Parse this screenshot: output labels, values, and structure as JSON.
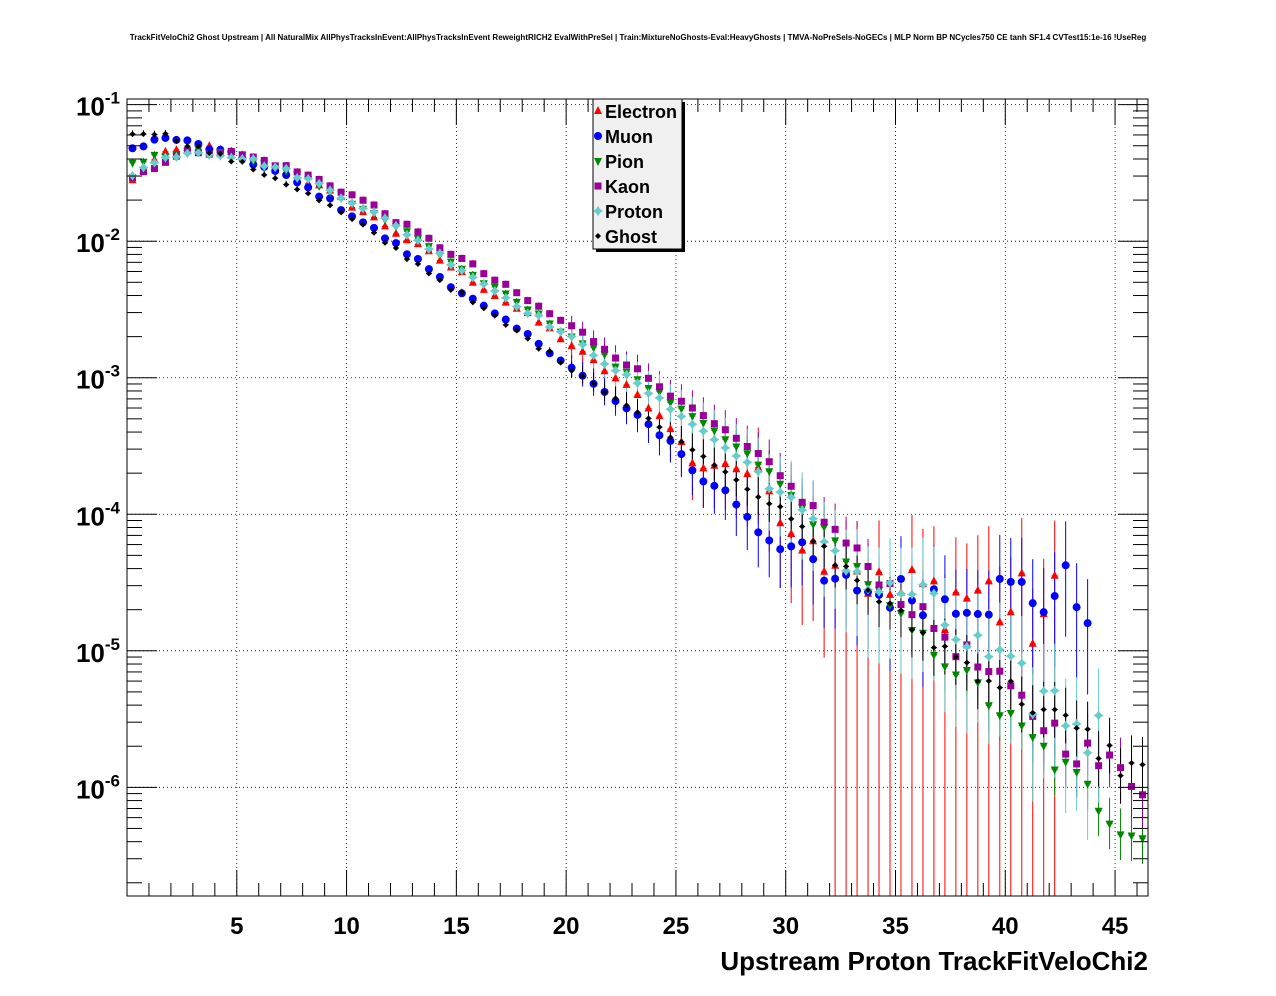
{
  "chart_data": {
    "type": "scatter",
    "title": "TrackFitVeloChi2 Ghost Upstream | All NaturalMix AllPhysTracksInEvent:AllPhysTracksInEvent ReweightRICH2 EvalWithPreSel | Train:MixtureNoGhosts-Eval:HeavyGhosts | TMVA-NoPreSels-NoGECs | MLP Norm BP NCycles750 CE tanh SF1.4 CVTest15:1e-16 !UseReg",
    "xlabel": "Upstream Proton TrackFitVeloChi2",
    "ylabel": "",
    "xlim": [
      0,
      46.5
    ],
    "ylim": [
      1.6e-07,
      0.11
    ],
    "yscale": "log",
    "grid": true,
    "legend_position": "top-center",
    "x_ticks": [
      "5",
      "10",
      "15",
      "20",
      "25",
      "30",
      "35",
      "40",
      "45"
    ],
    "y_ticks": [
      {
        "base": "10",
        "exp": "-1"
      },
      {
        "base": "10",
        "exp": "-2"
      },
      {
        "base": "10",
        "exp": "-3"
      },
      {
        "base": "10",
        "exp": "-4"
      },
      {
        "base": "10",
        "exp": "-5"
      },
      {
        "base": "10",
        "exp": "-6"
      }
    ],
    "series": [
      {
        "name": "Electron",
        "color": "#ff0000",
        "marker": "triangle-up",
        "anchors": [
          [
            0.2,
            0.027
          ],
          [
            0.7,
            0.033
          ],
          [
            1.5,
            0.042
          ],
          [
            2.5,
            0.047
          ],
          [
            3.5,
            0.049
          ],
          [
            5,
            0.043
          ],
          [
            7,
            0.033
          ],
          [
            9,
            0.024
          ],
          [
            11,
            0.0155
          ],
          [
            13,
            0.0097
          ],
          [
            15,
            0.0061
          ],
          [
            17,
            0.0038
          ],
          [
            19,
            0.0024
          ],
          [
            21,
            0.0014
          ],
          [
            23,
            0.0008
          ],
          [
            25,
            0.0004
          ],
          [
            26,
            0.0002
          ],
          [
            27,
            0.00025
          ],
          [
            28,
            0.00021
          ],
          [
            29,
            0.00018
          ],
          [
            30,
            9e-05
          ],
          [
            31,
            6e-05
          ],
          [
            32,
            5e-05
          ],
          [
            33,
            4.5e-05
          ],
          [
            34,
            3e-05
          ],
          [
            35,
            2.5e-05
          ],
          [
            36,
            2.8e-05
          ],
          [
            37,
            2.5e-05
          ],
          [
            38,
            2.5e-05
          ],
          [
            39,
            2.8e-05
          ],
          [
            40,
            2e-05
          ],
          [
            41,
            1.8e-05
          ],
          [
            42,
            1.8e-05
          ]
        ],
        "scatter": 0.42,
        "err_rel": 0.65,
        "x_end": 42.6
      },
      {
        "name": "Muon",
        "color": "#0000ff",
        "marker": "circle",
        "anchors": [
          [
            0.2,
            0.047
          ],
          [
            1,
            0.054
          ],
          [
            2,
            0.057
          ],
          [
            3,
            0.052
          ],
          [
            5,
            0.042
          ],
          [
            7,
            0.031
          ],
          [
            9,
            0.021
          ],
          [
            11,
            0.013
          ],
          [
            13,
            0.0077
          ],
          [
            15,
            0.0045
          ],
          [
            17,
            0.0027
          ],
          [
            19,
            0.0017
          ],
          [
            21,
            0.00095
          ],
          [
            23,
            0.00055
          ],
          [
            25,
            0.00032
          ],
          [
            26,
            0.00018
          ],
          [
            27,
            0.00016
          ],
          [
            28,
            0.00011
          ],
          [
            29,
            7e-05
          ],
          [
            30,
            6e-05
          ],
          [
            31,
            5e-05
          ],
          [
            32,
            2.8e-05
          ],
          [
            33,
            3.2e-05
          ],
          [
            34,
            2.6e-05
          ],
          [
            40,
            2.6e-05
          ],
          [
            44,
            2.6e-05
          ]
        ],
        "scatter": 0.28,
        "err_rel": 0.45,
        "x_end": 44.2
      },
      {
        "name": "Pion",
        "color": "#008800",
        "marker": "triangle-down",
        "anchors": [
          [
            0.2,
            0.036
          ],
          [
            1,
            0.04
          ],
          [
            2,
            0.044
          ],
          [
            3,
            0.046
          ],
          [
            5,
            0.043
          ],
          [
            7,
            0.034
          ],
          [
            9,
            0.025
          ],
          [
            11,
            0.017
          ],
          [
            13,
            0.011
          ],
          [
            15,
            0.0067
          ],
          [
            17,
            0.0042
          ],
          [
            19,
            0.0027
          ],
          [
            21,
            0.0017
          ],
          [
            23,
            0.00105
          ],
          [
            25,
            0.00063
          ],
          [
            27,
            0.00038
          ],
          [
            29,
            0.00022
          ],
          [
            30,
            0.00015
          ],
          [
            31,
            0.0001
          ],
          [
            32,
            6.8e-05
          ],
          [
            33,
            4.5e-05
          ],
          [
            34,
            2.9e-05
          ],
          [
            35,
            1.8e-05
          ],
          [
            36,
            1.3e-05
          ],
          [
            37,
            9.5e-06
          ],
          [
            38,
            6.8e-06
          ],
          [
            39,
            4.8e-06
          ],
          [
            40,
            3.3e-06
          ],
          [
            41,
            2.3e-06
          ],
          [
            42,
            1.7e-06
          ],
          [
            43,
            1.2e-06
          ],
          [
            44,
            8.5e-07
          ],
          [
            45,
            6e-07
          ],
          [
            46.4,
            4.5e-07
          ]
        ],
        "scatter": 0.12,
        "err_rel": 0.2,
        "x_end": 46.4
      },
      {
        "name": "Kaon",
        "color": "#990099",
        "marker": "square",
        "anchors": [
          [
            0.2,
            0.029
          ],
          [
            1,
            0.034
          ],
          [
            2,
            0.04
          ],
          [
            3,
            0.046
          ],
          [
            5,
            0.044
          ],
          [
            7,
            0.036
          ],
          [
            9,
            0.027
          ],
          [
            11,
            0.019
          ],
          [
            13,
            0.012
          ],
          [
            15,
            0.0078
          ],
          [
            17,
            0.0049
          ],
          [
            19,
            0.0031
          ],
          [
            21,
            0.002
          ],
          [
            23,
            0.0012
          ],
          [
            25,
            0.00072
          ],
          [
            27,
            0.00043
          ],
          [
            29,
            0.00025
          ],
          [
            30,
            0.00017
          ],
          [
            31,
            0.00012
          ],
          [
            32,
            8.2e-05
          ],
          [
            33,
            5.6e-05
          ],
          [
            34,
            3.8e-05
          ],
          [
            35,
            2.7e-05
          ],
          [
            36,
            1.9e-05
          ],
          [
            37,
            1.4e-05
          ],
          [
            38,
            1e-05
          ],
          [
            39,
            7.2e-06
          ],
          [
            40,
            5.2e-06
          ],
          [
            41,
            3.8e-06
          ],
          [
            42,
            2.8e-06
          ],
          [
            43,
            2.1e-06
          ],
          [
            44,
            1.6e-06
          ],
          [
            45,
            1.3e-06
          ],
          [
            46.4,
            1.1e-06
          ]
        ],
        "scatter": 0.14,
        "err_rel": 0.25,
        "x_end": 46.4
      },
      {
        "name": "Proton",
        "color": "#66cccc",
        "marker": "diamond",
        "anchors": [
          [
            0.2,
            0.031
          ],
          [
            1,
            0.036
          ],
          [
            2,
            0.042
          ],
          [
            3,
            0.046
          ],
          [
            5,
            0.042
          ],
          [
            7,
            0.034
          ],
          [
            9,
            0.025
          ],
          [
            11,
            0.017
          ],
          [
            13,
            0.0108
          ],
          [
            15,
            0.0066
          ],
          [
            17,
            0.0041
          ],
          [
            19,
            0.0026
          ],
          [
            21,
            0.0016
          ],
          [
            23,
            0.00095
          ],
          [
            25,
            0.00056
          ],
          [
            27,
            0.00033
          ],
          [
            29,
            0.00019
          ],
          [
            30,
            0.00013
          ],
          [
            31,
            9e-05
          ],
          [
            32,
            6e-05
          ],
          [
            33,
            4.1e-05
          ],
          [
            34,
            2.8e-05
          ],
          [
            35,
            2.6e-05
          ],
          [
            36,
            2.8e-05
          ],
          [
            37,
            1.7e-05
          ],
          [
            38,
            1.2e-05
          ],
          [
            39,
            9.5e-06
          ],
          [
            40,
            6.5e-06
          ],
          [
            41,
            5e-06
          ],
          [
            42,
            4.5e-06
          ],
          [
            43,
            3.2e-06
          ],
          [
            44,
            2.5e-06
          ],
          [
            45,
            1.8e-06
          ],
          [
            46.4,
            1.2e-06
          ]
        ],
        "scatter": 0.25,
        "err_rel": 0.5,
        "x_end": 44.5
      },
      {
        "name": "Ghost",
        "color": "#000000",
        "marker": "small-diamond",
        "anchors": [
          [
            0.2,
            0.062
          ],
          [
            1,
            0.064
          ],
          [
            2,
            0.058
          ],
          [
            3,
            0.05
          ],
          [
            5,
            0.038
          ],
          [
            7,
            0.028
          ],
          [
            9,
            0.019
          ],
          [
            11,
            0.012
          ],
          [
            13,
            0.0072
          ],
          [
            15,
            0.0043
          ],
          [
            17,
            0.0026
          ],
          [
            19,
            0.0016
          ],
          [
            21,
            0.00098
          ],
          [
            23,
            0.00059
          ],
          [
            25,
            0.00036
          ],
          [
            27,
            0.00022
          ],
          [
            29,
            0.00013
          ],
          [
            30,
            0.0001
          ],
          [
            31,
            7e-05
          ],
          [
            32,
            5e-05
          ],
          [
            33,
            3.6e-05
          ],
          [
            34,
            2.6e-05
          ],
          [
            35,
            1.9e-05
          ],
          [
            36,
            1.4e-05
          ],
          [
            37,
            1.1e-05
          ],
          [
            38,
            8.5e-06
          ],
          [
            39,
            6.8e-06
          ],
          [
            40,
            5.5e-06
          ],
          [
            41,
            4.3e-06
          ],
          [
            42,
            3.4e-06
          ],
          [
            43,
            2.7e-06
          ],
          [
            44,
            2.1e-06
          ],
          [
            45,
            1.6e-06
          ],
          [
            46.4,
            1.2e-06
          ]
        ],
        "scatter": 0.12,
        "err_rel": 0.22,
        "x_end": 46.4
      }
    ]
  }
}
